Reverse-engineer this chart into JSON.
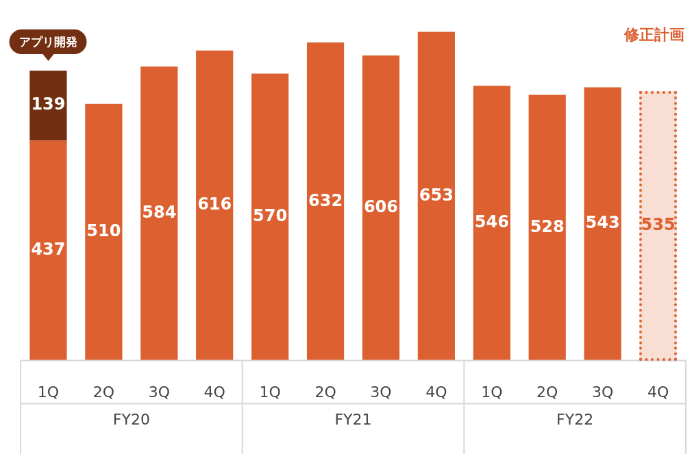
{
  "chart_data": {
    "type": "bar",
    "stacked": true,
    "categories": [
      "1Q",
      "2Q",
      "3Q",
      "4Q",
      "1Q",
      "2Q",
      "3Q",
      "4Q",
      "1Q",
      "2Q",
      "3Q",
      "4Q"
    ],
    "series": [
      {
        "color": "#dc6030",
        "values": [
          437,
          510,
          584,
          616,
          570,
          632,
          606,
          653,
          546,
          528,
          543,
          null
        ]
      },
      {
        "color": "#722f12",
        "values": [
          139,
          null,
          null,
          null,
          null,
          null,
          null,
          null,
          null,
          null,
          null,
          null
        ]
      },
      {
        "color": "#f9ded3",
        "line_style": "dotted",
        "values": [
          null,
          null,
          null,
          null,
          null,
          null,
          null,
          null,
          null,
          null,
          null,
          535
        ]
      }
    ],
    "data_labels": true,
    "grid": false,
    "legend": false,
    "annotations": [
      "アプリ開発",
      "修正計画",
      "FY20",
      "FY21",
      "FY22"
    ]
  }
}
